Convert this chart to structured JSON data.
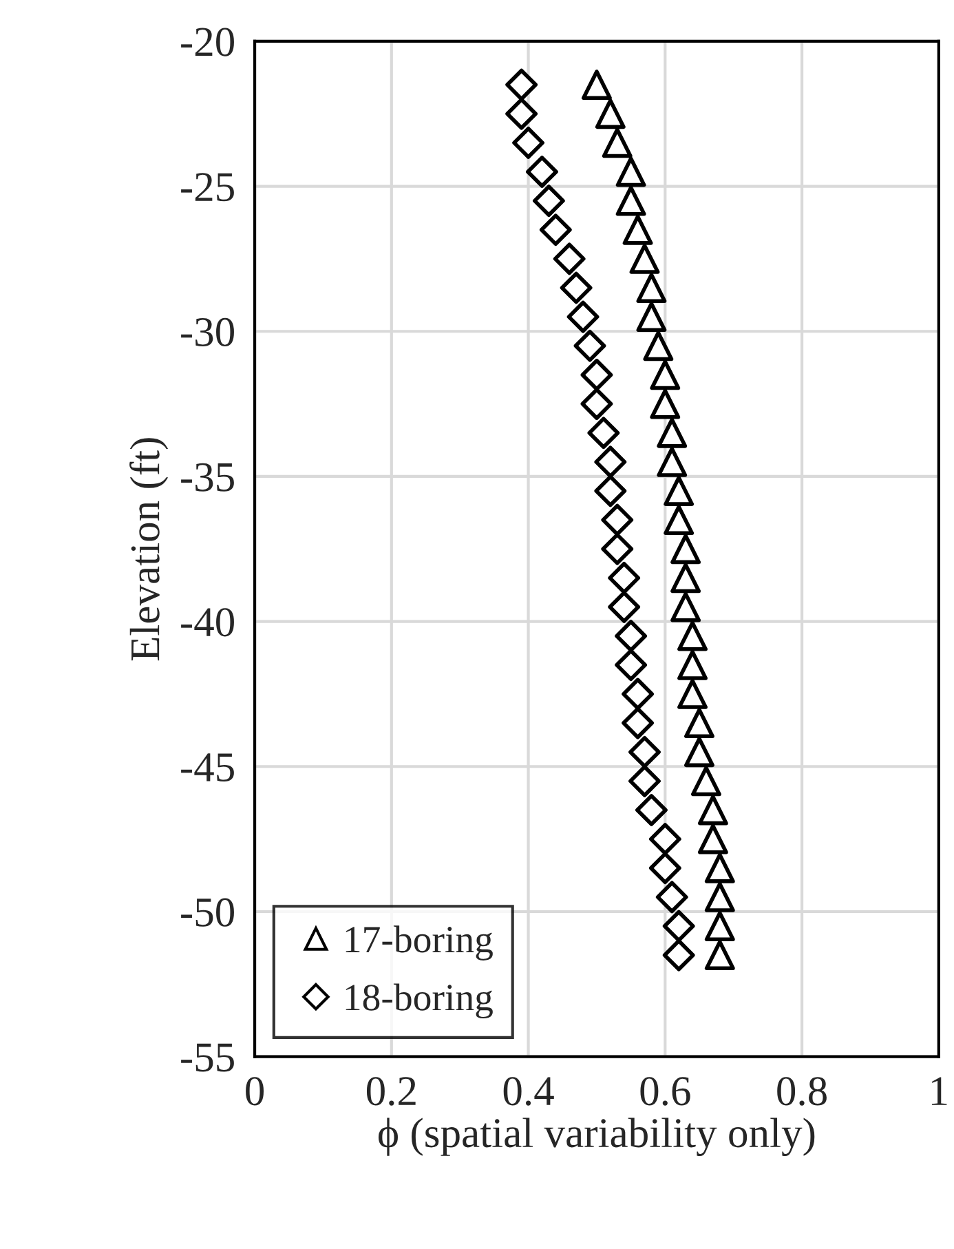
{
  "chart_data": {
    "type": "scatter",
    "xlabel": "ϕ (spatial variability only)",
    "ylabel": "Elevation (ft)",
    "xlim": [
      0,
      1
    ],
    "xticks": [
      0,
      0.2,
      0.4,
      0.6,
      0.8,
      1
    ],
    "ylim": [
      -55,
      -20
    ],
    "yticks": [
      -55,
      -50,
      -45,
      -40,
      -35,
      -30,
      -25,
      -20
    ],
    "grid": true,
    "legend": "bottom left",
    "series": [
      {
        "name": "17-boring",
        "color": "#000000",
        "marker": "triangle",
        "x": [
          0.5,
          0.52,
          0.53,
          0.55,
          0.55,
          0.56,
          0.57,
          0.58,
          0.58,
          0.59,
          0.6,
          0.6,
          0.61,
          0.61,
          0.62,
          0.62,
          0.63,
          0.63,
          0.63,
          0.64,
          0.64,
          0.64,
          0.65,
          0.65,
          0.66,
          0.67,
          0.67,
          0.68,
          0.68,
          0.68,
          0.68
        ],
        "values": [
          -21.5,
          -22.5,
          -23.5,
          -24.5,
          -25.5,
          -26.5,
          -27.5,
          -28.5,
          -29.5,
          -30.5,
          -31.5,
          -32.5,
          -33.5,
          -34.5,
          -35.5,
          -36.5,
          -37.5,
          -38.5,
          -39.5,
          -40.5,
          -41.5,
          -42.5,
          -43.5,
          -44.5,
          -45.5,
          -46.5,
          -47.5,
          -48.5,
          -49.5,
          -50.5,
          -51.5
        ]
      },
      {
        "name": "18-boring",
        "color": "#000000",
        "marker": "diamond",
        "x": [
          0.39,
          0.39,
          0.4,
          0.42,
          0.43,
          0.44,
          0.46,
          0.47,
          0.48,
          0.49,
          0.5,
          0.5,
          0.51,
          0.52,
          0.52,
          0.53,
          0.53,
          0.54,
          0.54,
          0.55,
          0.55,
          0.56,
          0.56,
          0.57,
          0.57,
          0.58,
          0.6,
          0.6,
          0.61,
          0.62,
          0.62
        ],
        "values": [
          -21.5,
          -22.5,
          -23.5,
          -24.5,
          -25.5,
          -26.5,
          -27.5,
          -28.5,
          -29.5,
          -30.5,
          -31.5,
          -32.5,
          -33.5,
          -34.5,
          -35.5,
          -36.5,
          -37.5,
          -38.5,
          -39.5,
          -40.5,
          -41.5,
          -42.5,
          -43.5,
          -44.5,
          -45.5,
          -46.5,
          -47.5,
          -48.5,
          -49.5,
          -50.5,
          -51.5
        ]
      }
    ]
  }
}
